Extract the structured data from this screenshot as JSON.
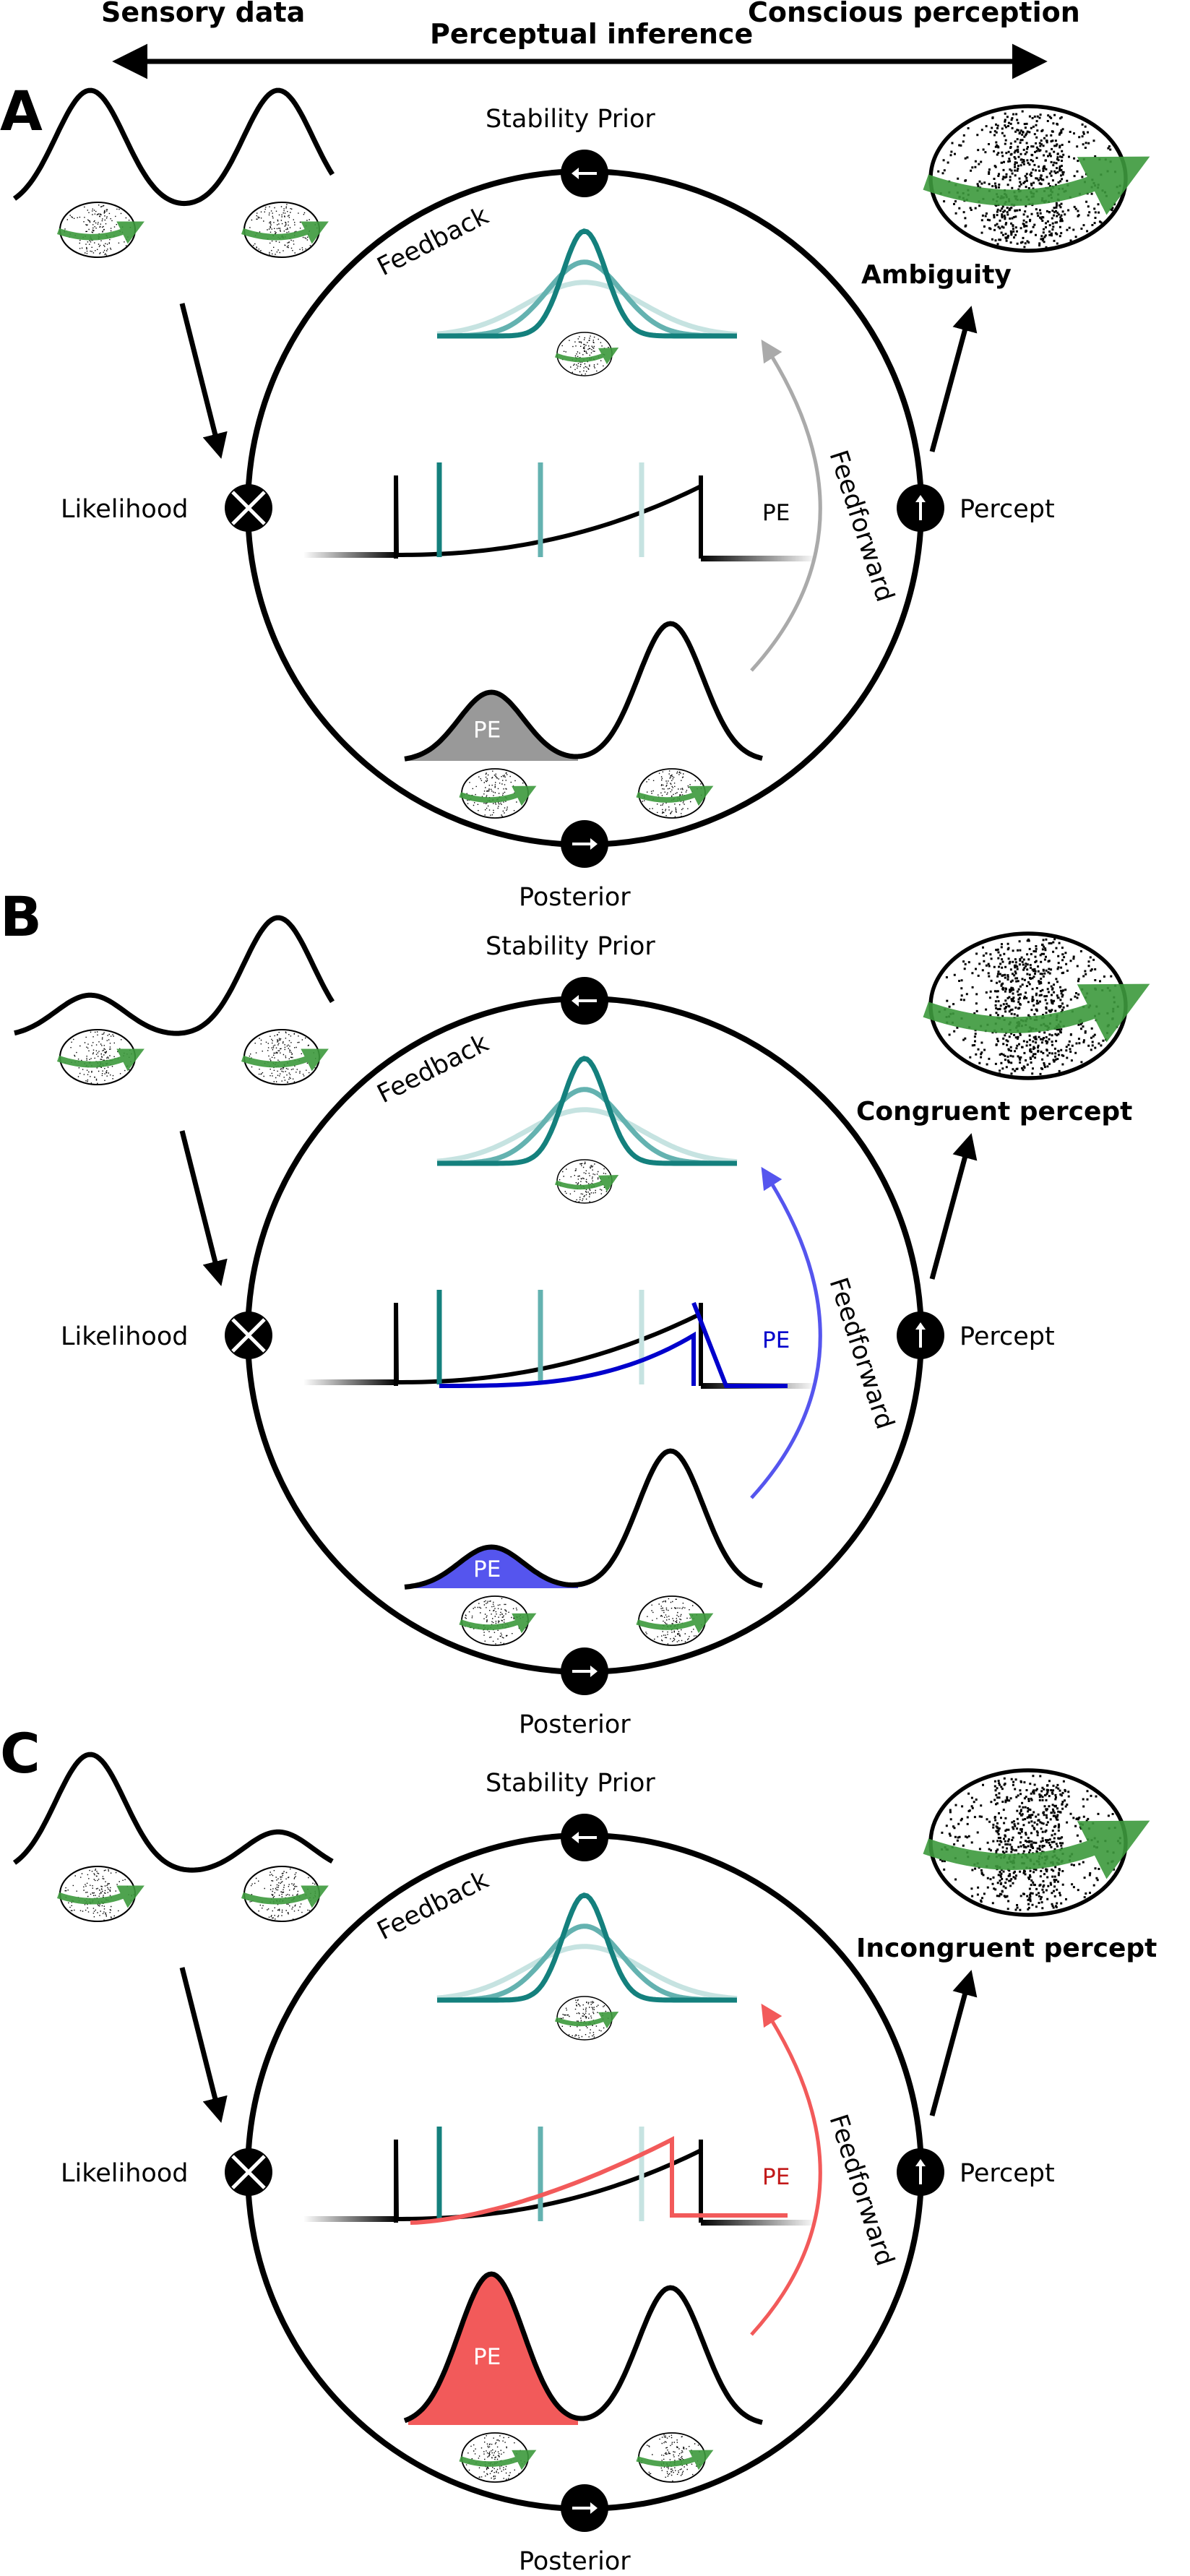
{
  "header": {
    "left": "Sensory data",
    "center": "Perceptual inference",
    "right": "Conscious perception"
  },
  "labels": {
    "stability_prior": "Stability Prior",
    "feedback": "Feedback",
    "feedforward": "Feedforward",
    "likelihood": "Likelihood",
    "percept": "Percept",
    "posterior": "Posterior",
    "pe": "PE"
  },
  "panels": [
    {
      "letter": "A",
      "outcome": "Ambiguity",
      "sensory_peak_ratio": [
        1.0,
        1.0
      ],
      "posterior_pe_ratio": 0.5,
      "colors": {
        "pe": "#999999",
        "feedforward": "#aaaaaa"
      }
    },
    {
      "letter": "B",
      "outcome": "Congruent percept",
      "sensory_peak_ratio": [
        0.35,
        1.0
      ],
      "posterior_pe_ratio": 0.3,
      "colors": {
        "pe": "#5555ee",
        "feedforward": "#5555ee"
      }
    },
    {
      "letter": "C",
      "outcome": "Incongruent percept",
      "sensory_peak_ratio": [
        1.0,
        0.35
      ],
      "posterior_pe_ratio": 1.1,
      "colors": {
        "pe": "#f25a5a",
        "feedforward": "#f25a5a"
      }
    }
  ],
  "colors": {
    "teal_dark": "#14807d",
    "teal_mid": "#64b2b0",
    "teal_light": "#c6e3e1",
    "green_arrow": "#3d9a3d"
  },
  "icons": [
    "left-arrow-icon",
    "right-arrow-icon",
    "up-arrow-icon",
    "multiply-icon",
    "rotating-sphere-icon"
  ]
}
